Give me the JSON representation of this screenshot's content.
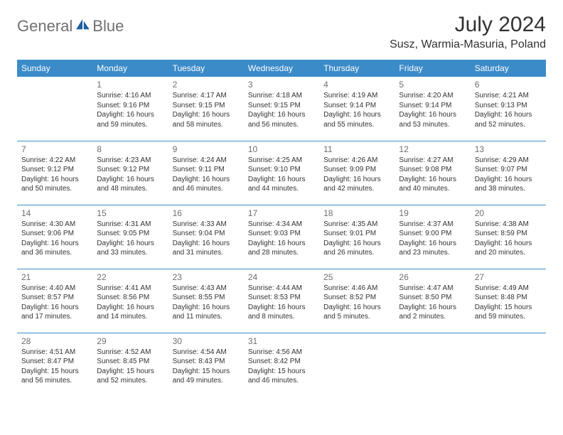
{
  "brand": {
    "text1": "General",
    "text2": "Blue",
    "logo_fill": "#1f5e9e"
  },
  "header": {
    "month_title": "July 2024",
    "location": "Susz, Warmia-Masuria, Poland"
  },
  "colors": {
    "header_bg": "#3b8bc9",
    "header_text": "#ffffff",
    "row_border": "#3b8bc9",
    "daynum": "#6f6f6f",
    "body_text": "#333333",
    "background": "#ffffff"
  },
  "calendar": {
    "day_labels": [
      "Sunday",
      "Monday",
      "Tuesday",
      "Wednesday",
      "Thursday",
      "Friday",
      "Saturday"
    ],
    "weeks": [
      [
        null,
        {
          "n": "1",
          "lines": [
            "Sunrise: 4:16 AM",
            "Sunset: 9:16 PM",
            "Daylight: 16 hours and 59 minutes."
          ]
        },
        {
          "n": "2",
          "lines": [
            "Sunrise: 4:17 AM",
            "Sunset: 9:15 PM",
            "Daylight: 16 hours and 58 minutes."
          ]
        },
        {
          "n": "3",
          "lines": [
            "Sunrise: 4:18 AM",
            "Sunset: 9:15 PM",
            "Daylight: 16 hours and 56 minutes."
          ]
        },
        {
          "n": "4",
          "lines": [
            "Sunrise: 4:19 AM",
            "Sunset: 9:14 PM",
            "Daylight: 16 hours and 55 minutes."
          ]
        },
        {
          "n": "5",
          "lines": [
            "Sunrise: 4:20 AM",
            "Sunset: 9:14 PM",
            "Daylight: 16 hours and 53 minutes."
          ]
        },
        {
          "n": "6",
          "lines": [
            "Sunrise: 4:21 AM",
            "Sunset: 9:13 PM",
            "Daylight: 16 hours and 52 minutes."
          ]
        }
      ],
      [
        {
          "n": "7",
          "lines": [
            "Sunrise: 4:22 AM",
            "Sunset: 9:12 PM",
            "Daylight: 16 hours and 50 minutes."
          ]
        },
        {
          "n": "8",
          "lines": [
            "Sunrise: 4:23 AM",
            "Sunset: 9:12 PM",
            "Daylight: 16 hours and 48 minutes."
          ]
        },
        {
          "n": "9",
          "lines": [
            "Sunrise: 4:24 AM",
            "Sunset: 9:11 PM",
            "Daylight: 16 hours and 46 minutes."
          ]
        },
        {
          "n": "10",
          "lines": [
            "Sunrise: 4:25 AM",
            "Sunset: 9:10 PM",
            "Daylight: 16 hours and 44 minutes."
          ]
        },
        {
          "n": "11",
          "lines": [
            "Sunrise: 4:26 AM",
            "Sunset: 9:09 PM",
            "Daylight: 16 hours and 42 minutes."
          ]
        },
        {
          "n": "12",
          "lines": [
            "Sunrise: 4:27 AM",
            "Sunset: 9:08 PM",
            "Daylight: 16 hours and 40 minutes."
          ]
        },
        {
          "n": "13",
          "lines": [
            "Sunrise: 4:29 AM",
            "Sunset: 9:07 PM",
            "Daylight: 16 hours and 38 minutes."
          ]
        }
      ],
      [
        {
          "n": "14",
          "lines": [
            "Sunrise: 4:30 AM",
            "Sunset: 9:06 PM",
            "Daylight: 16 hours and 36 minutes."
          ]
        },
        {
          "n": "15",
          "lines": [
            "Sunrise: 4:31 AM",
            "Sunset: 9:05 PM",
            "Daylight: 16 hours and 33 minutes."
          ]
        },
        {
          "n": "16",
          "lines": [
            "Sunrise: 4:33 AM",
            "Sunset: 9:04 PM",
            "Daylight: 16 hours and 31 minutes."
          ]
        },
        {
          "n": "17",
          "lines": [
            "Sunrise: 4:34 AM",
            "Sunset: 9:03 PM",
            "Daylight: 16 hours and 28 minutes."
          ]
        },
        {
          "n": "18",
          "lines": [
            "Sunrise: 4:35 AM",
            "Sunset: 9:01 PM",
            "Daylight: 16 hours and 26 minutes."
          ]
        },
        {
          "n": "19",
          "lines": [
            "Sunrise: 4:37 AM",
            "Sunset: 9:00 PM",
            "Daylight: 16 hours and 23 minutes."
          ]
        },
        {
          "n": "20",
          "lines": [
            "Sunrise: 4:38 AM",
            "Sunset: 8:59 PM",
            "Daylight: 16 hours and 20 minutes."
          ]
        }
      ],
      [
        {
          "n": "21",
          "lines": [
            "Sunrise: 4:40 AM",
            "Sunset: 8:57 PM",
            "Daylight: 16 hours and 17 minutes."
          ]
        },
        {
          "n": "22",
          "lines": [
            "Sunrise: 4:41 AM",
            "Sunset: 8:56 PM",
            "Daylight: 16 hours and 14 minutes."
          ]
        },
        {
          "n": "23",
          "lines": [
            "Sunrise: 4:43 AM",
            "Sunset: 8:55 PM",
            "Daylight: 16 hours and 11 minutes."
          ]
        },
        {
          "n": "24",
          "lines": [
            "Sunrise: 4:44 AM",
            "Sunset: 8:53 PM",
            "Daylight: 16 hours and 8 minutes."
          ]
        },
        {
          "n": "25",
          "lines": [
            "Sunrise: 4:46 AM",
            "Sunset: 8:52 PM",
            "Daylight: 16 hours and 5 minutes."
          ]
        },
        {
          "n": "26",
          "lines": [
            "Sunrise: 4:47 AM",
            "Sunset: 8:50 PM",
            "Daylight: 16 hours and 2 minutes."
          ]
        },
        {
          "n": "27",
          "lines": [
            "Sunrise: 4:49 AM",
            "Sunset: 8:48 PM",
            "Daylight: 15 hours and 59 minutes."
          ]
        }
      ],
      [
        {
          "n": "28",
          "lines": [
            "Sunrise: 4:51 AM",
            "Sunset: 8:47 PM",
            "Daylight: 15 hours and 56 minutes."
          ]
        },
        {
          "n": "29",
          "lines": [
            "Sunrise: 4:52 AM",
            "Sunset: 8:45 PM",
            "Daylight: 15 hours and 52 minutes."
          ]
        },
        {
          "n": "30",
          "lines": [
            "Sunrise: 4:54 AM",
            "Sunset: 8:43 PM",
            "Daylight: 15 hours and 49 minutes."
          ]
        },
        {
          "n": "31",
          "lines": [
            "Sunrise: 4:56 AM",
            "Sunset: 8:42 PM",
            "Daylight: 15 hours and 46 minutes."
          ]
        },
        null,
        null,
        null
      ]
    ]
  }
}
